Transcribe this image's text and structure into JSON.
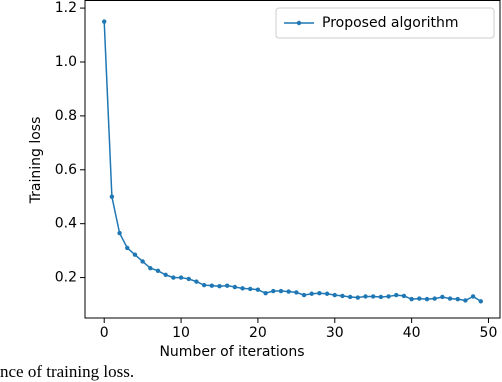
{
  "chart_data": {
    "type": "line",
    "xlabel": "Number of iterations",
    "ylabel": "Training loss",
    "caption": "nce of training loss.",
    "x": [
      0,
      1,
      2,
      3,
      4,
      5,
      6,
      7,
      8,
      9,
      10,
      11,
      12,
      13,
      14,
      15,
      16,
      17,
      18,
      19,
      20,
      21,
      22,
      23,
      24,
      25,
      26,
      27,
      28,
      29,
      30,
      31,
      32,
      33,
      34,
      35,
      36,
      37,
      38,
      39,
      40,
      41,
      42,
      43,
      44,
      45,
      46,
      47,
      48,
      49
    ],
    "series": [
      {
        "name": "Proposed algorithm",
        "color": "#1f77b4",
        "values": [
          1.15,
          0.5,
          0.365,
          0.31,
          0.285,
          0.26,
          0.235,
          0.225,
          0.21,
          0.2,
          0.2,
          0.195,
          0.185,
          0.172,
          0.17,
          0.168,
          0.17,
          0.165,
          0.16,
          0.158,
          0.155,
          0.142,
          0.15,
          0.15,
          0.148,
          0.145,
          0.135,
          0.14,
          0.142,
          0.14,
          0.135,
          0.132,
          0.128,
          0.126,
          0.13,
          0.13,
          0.128,
          0.13,
          0.135,
          0.132,
          0.12,
          0.122,
          0.12,
          0.122,
          0.128,
          0.122,
          0.12,
          0.115,
          0.13,
          0.112
        ]
      }
    ],
    "xlim": [
      -2.5,
      51.5
    ],
    "ylim": [
      0.05,
      1.23
    ],
    "xticks": [
      0,
      10,
      20,
      30,
      40,
      50
    ],
    "yticks": [
      0.2,
      0.4,
      0.6,
      0.8,
      {
        "value": 1,
        "label": "1.0"
      },
      1.2
    ],
    "legend": "upper right"
  }
}
